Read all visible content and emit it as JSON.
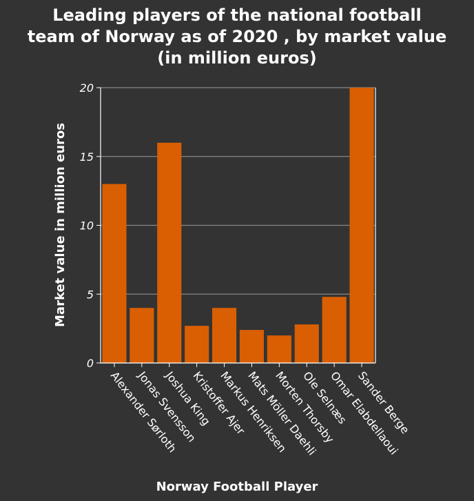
{
  "chart_data": {
    "type": "bar",
    "title_lines": [
      "Leading players of the national football",
      "team of Norway as of 2020 , by market value",
      "(in million euros)"
    ],
    "xlabel": "Norway Football Player",
    "ylabel": "Market value in million euros",
    "categories": [
      "Alexander Sørloth",
      "Jonas Svensson",
      "Joshua King",
      "Kristoffer Ajer",
      "Markus Henriksen",
      "Mats Möller Daehli",
      "Morten Thorsby",
      "Ole Selnæs",
      "Omar Elabdellaoui",
      "Sander Berge"
    ],
    "values": [
      13,
      4,
      16,
      2.7,
      4,
      2.4,
      2,
      2.8,
      4.8,
      20
    ],
    "ylim": [
      0,
      20
    ],
    "yticks": [
      "0",
      "5",
      "10",
      "15",
      "20"
    ],
    "grid": true,
    "colors": {
      "background": "#333333",
      "bar": "#d95f02",
      "grid": "#888888",
      "text": "#ffffff",
      "axis": "#ffffff"
    }
  }
}
